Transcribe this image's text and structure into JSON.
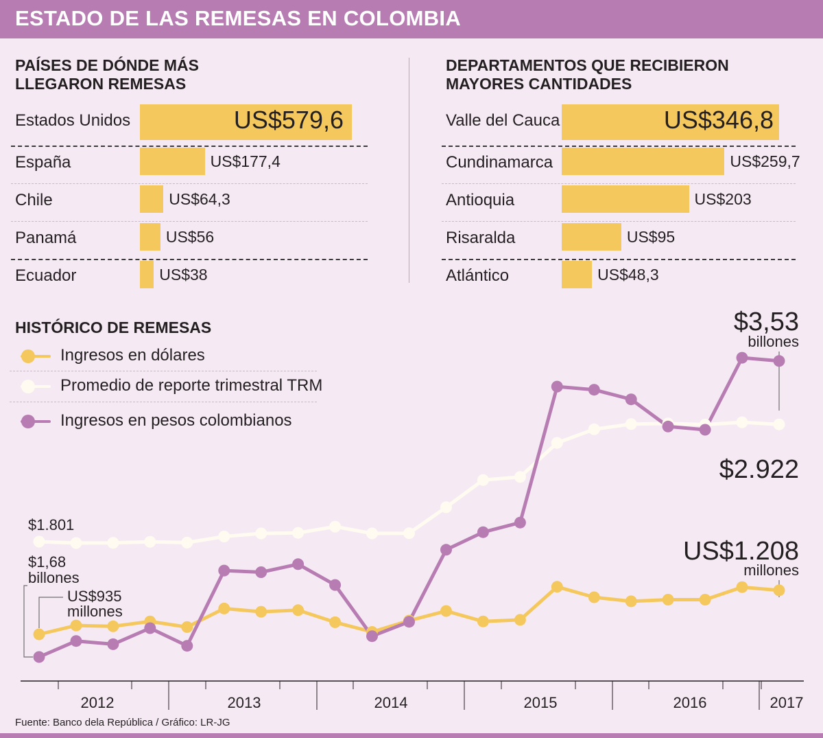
{
  "title": "ESTADO DE LAS REMESAS EN COLOMBIA",
  "countries": {
    "title_line1": "PAÍSES DE DÓNDE MÁS",
    "title_line2": "LLEGARON REMESAS",
    "items": [
      {
        "label": "Estados Unidos",
        "value": 579.6,
        "value_label": "US$579,6"
      },
      {
        "label": "España",
        "value": 177.4,
        "value_label": "US$177,4"
      },
      {
        "label": "Chile",
        "value": 64.3,
        "value_label": "US$64,3"
      },
      {
        "label": "Panamá",
        "value": 56,
        "value_label": "US$56"
      },
      {
        "label": "Ecuador",
        "value": 38,
        "value_label": "US$38"
      }
    ]
  },
  "departments": {
    "title_line1": "DEPARTAMENTOS QUE RECIBIERON",
    "title_line2": "MAYORES CANTIDADES",
    "items": [
      {
        "label": "Valle del Cauca",
        "value": 346.8,
        "value_label": "US$346,8"
      },
      {
        "label": "Cundinamarca",
        "value": 259.7,
        "value_label": "US$259,7"
      },
      {
        "label": "Antioquia",
        "value": 203,
        "value_label": "US$203"
      },
      {
        "label": "Risaralda",
        "value": 95,
        "value_label": "US$95"
      },
      {
        "label": "Atlántico",
        "value": 48.3,
        "value_label": "US$48,3"
      }
    ]
  },
  "history": {
    "title": "HISTÓRICO DE REMESAS",
    "legend": [
      {
        "label": "Ingresos en dólares",
        "color": "#f5c85e"
      },
      {
        "label": "Promedio de reporte trimestral TRM",
        "color": "#fffbf1"
      },
      {
        "label": "Ingresos en pesos colombianos",
        "color": "#b77db3"
      }
    ],
    "annotations": {
      "trm_start": "$1.801",
      "pesos_start_value": "$1,68",
      "pesos_start_unit": "billones",
      "usd_start_value": "US$935",
      "usd_start_unit": "millones",
      "pesos_end_value": "$3,53",
      "pesos_end_unit": "billones",
      "trm_end": "$2.922",
      "usd_end_value": "US$1.208",
      "usd_end_unit": "millones"
    },
    "years": [
      "2012",
      "2013",
      "2014",
      "2015",
      "2016",
      "2017"
    ]
  },
  "chart_data": [
    {
      "type": "bar",
      "title": "PAÍSES DE DÓNDE MÁS LLEGARON REMESAS",
      "categories": [
        "Estados Unidos",
        "España",
        "Chile",
        "Panamá",
        "Ecuador"
      ],
      "values": [
        579.6,
        177.4,
        64.3,
        56,
        38
      ],
      "unit": "US$ millones"
    },
    {
      "type": "bar",
      "title": "DEPARTAMENTOS QUE RECIBIERON MAYORES CANTIDADES",
      "categories": [
        "Valle del Cauca",
        "Cundinamarca",
        "Antioquia",
        "Risaralda",
        "Atlántico"
      ],
      "values": [
        346.8,
        259.7,
        203,
        95,
        48.3
      ],
      "unit": "US$ millones"
    },
    {
      "type": "line",
      "title": "HISTÓRICO DE REMESAS",
      "x": [
        "2012-T1",
        "2012-T2",
        "2012-T3",
        "2012-T4",
        "2013-T1",
        "2013-T2",
        "2013-T3",
        "2013-T4",
        "2014-T1",
        "2014-T2",
        "2014-T3",
        "2014-T4",
        "2015-T1",
        "2015-T2",
        "2015-T3",
        "2015-T4",
        "2016-T1",
        "2016-T2",
        "2016-T3",
        "2016-T4",
        "2017-T1"
      ],
      "series": [
        {
          "name": "Ingresos en dólares",
          "unit": "US$ millones",
          "values": [
            935,
            990,
            985,
            1015,
            980,
            1095,
            1075,
            1085,
            1010,
            950,
            1020,
            1080,
            1015,
            1025,
            1230,
            1165,
            1140,
            1150,
            1150,
            1228,
            1208
          ]
        },
        {
          "name": "Promedio de reporte trimestral TRM",
          "unit": "COP por US$",
          "values": [
            1801,
            1788,
            1790,
            1800,
            1792,
            1850,
            1880,
            1885,
            1945,
            1880,
            1882,
            2130,
            2390,
            2420,
            2745,
            2875,
            2925,
            2930,
            2920,
            2942,
            2922
          ]
        },
        {
          "name": "Ingresos en pesos colombianos",
          "unit": "billones de pesos",
          "values": [
            1.68,
            1.78,
            1.76,
            1.86,
            1.75,
            2.22,
            2.21,
            2.26,
            2.13,
            1.81,
            1.9,
            2.35,
            2.46,
            2.52,
            3.37,
            3.35,
            3.29,
            3.12,
            3.1,
            3.55,
            3.53
          ]
        }
      ],
      "xlabel": "",
      "ylabel": ""
    }
  ],
  "source": "Fuente: Banco dela República / Gráfico: LR-JG"
}
